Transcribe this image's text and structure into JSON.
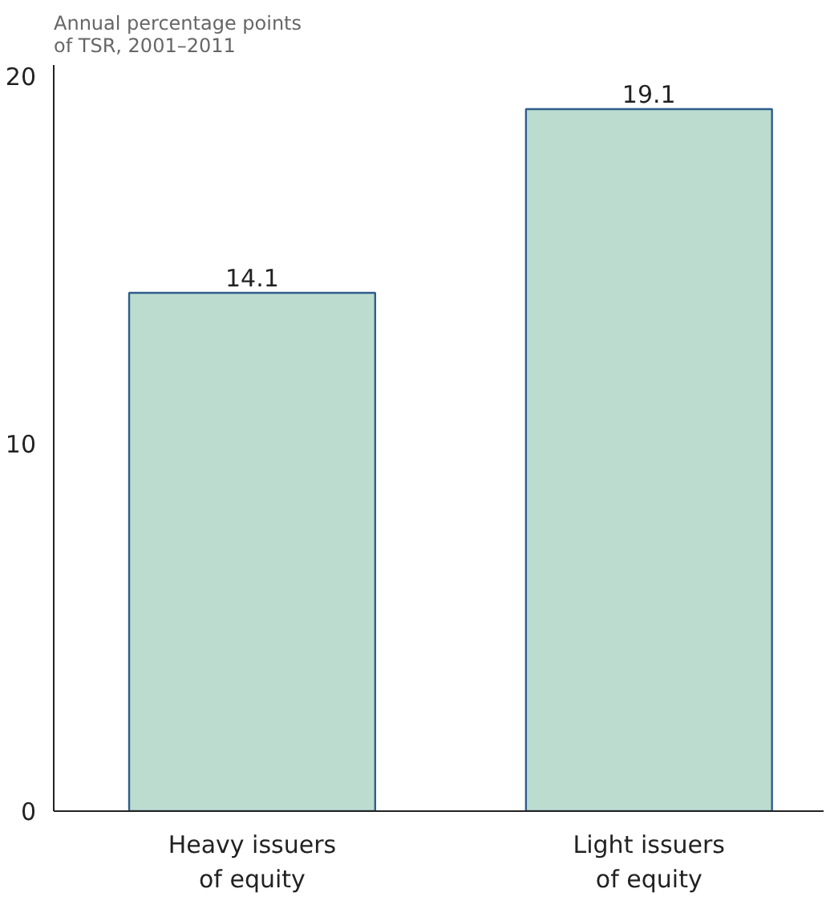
{
  "chart_data": {
    "type": "bar",
    "ylabel": "Annual percentage points\nof TSR, 2001–2011",
    "categories": [
      "Heavy issuers\nof equity",
      "Light issuers\nof equity"
    ],
    "values": [
      14.1,
      19.1
    ],
    "color": "#bcdcd0",
    "data_labels": true,
    "ylim": [
      0,
      20.3
    ],
    "yticks": [
      0,
      10,
      20
    ]
  }
}
